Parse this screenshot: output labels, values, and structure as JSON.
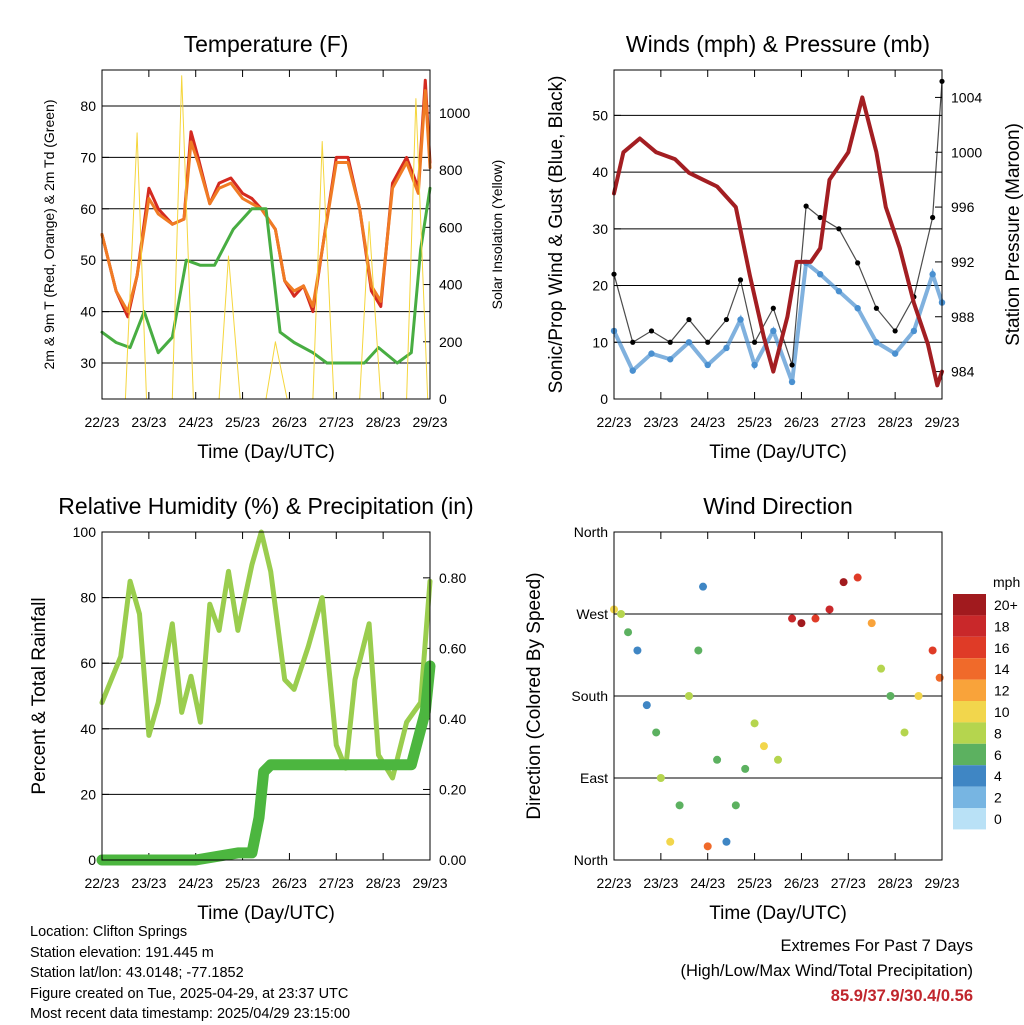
{
  "chart_data": [
    {
      "type": "line",
      "title": "Temperature (F)",
      "xlabel": "Time (Day/UTC)",
      "ylabel": "2m & 9m T (Red, Orange) & 2m Td (Green)",
      "y2label": "Solar Insolation (Yellow)",
      "x_ticks": [
        "22/23",
        "23/23",
        "24/23",
        "25/23",
        "26/23",
        "27/23",
        "28/23",
        "29/23"
      ],
      "y_ticks": [
        30,
        40,
        50,
        60,
        70,
        80
      ],
      "y2_ticks": [
        0,
        200,
        400,
        600,
        800,
        1000
      ],
      "ylim": [
        23,
        87
      ],
      "y2lim": [
        0,
        1150
      ],
      "grid": true,
      "series": [
        {
          "name": "2m T",
          "color": "#d42a20",
          "x": [
            0.0,
            0.3,
            0.55,
            0.75,
            1.0,
            1.2,
            1.5,
            1.75,
            1.9,
            2.05,
            2.3,
            2.5,
            2.75,
            3.0,
            3.2,
            3.4,
            3.7,
            3.9,
            4.1,
            4.3,
            4.5,
            4.7,
            5.0,
            5.25,
            5.5,
            5.75,
            5.95,
            6.2,
            6.5,
            6.75,
            6.9,
            7.0
          ],
          "values": [
            55,
            44,
            39,
            47,
            64,
            60,
            57,
            58,
            75,
            70,
            61,
            65,
            66,
            63,
            62,
            60,
            56,
            46,
            43,
            45,
            40,
            52,
            70,
            70,
            60,
            44,
            41,
            65,
            70,
            64,
            85,
            69
          ]
        },
        {
          "name": "9m T",
          "color": "#f07b24",
          "x": [
            0.0,
            0.3,
            0.55,
            0.75,
            1.0,
            1.2,
            1.5,
            1.75,
            1.9,
            2.05,
            2.3,
            2.5,
            2.75,
            3.0,
            3.2,
            3.4,
            3.7,
            3.9,
            4.1,
            4.3,
            4.5,
            4.7,
            5.0,
            5.25,
            5.5,
            5.75,
            5.95,
            6.2,
            6.5,
            6.75,
            6.9,
            7.0
          ],
          "values": [
            55,
            44,
            40,
            47,
            62,
            59,
            57,
            58,
            73,
            69,
            61,
            64,
            65,
            62,
            61,
            60,
            56,
            46,
            44,
            45,
            41,
            52,
            69,
            69,
            60,
            45,
            42,
            64,
            69,
            63,
            83,
            68
          ]
        },
        {
          "name": "2m Td",
          "color": "#48ad42",
          "x": [
            0.0,
            0.3,
            0.6,
            0.9,
            1.2,
            1.5,
            1.8,
            2.1,
            2.4,
            2.8,
            3.2,
            3.5,
            3.8,
            4.1,
            4.5,
            4.8,
            5.2,
            5.6,
            5.9,
            6.3,
            6.6,
            6.8,
            7.0
          ],
          "values": [
            36,
            34,
            33,
            40,
            32,
            35,
            50,
            49,
            49,
            56,
            60,
            60,
            36,
            34,
            32,
            30,
            30,
            30,
            33,
            30,
            32,
            52,
            64
          ]
        },
        {
          "name": "Solar Insolation",
          "color": "#f5d63d",
          "axis": "y2",
          "x": [
            0.5,
            0.75,
            0.95,
            1.5,
            1.7,
            1.95,
            2.5,
            2.7,
            2.95,
            3.5,
            3.7,
            3.95,
            4.5,
            4.7,
            4.95,
            5.5,
            5.7,
            5.95,
            6.5,
            6.7,
            6.95
          ],
          "values": [
            0,
            930,
            0,
            0,
            1130,
            0,
            0,
            500,
            0,
            0,
            200,
            0,
            0,
            900,
            0,
            0,
            620,
            0,
            0,
            1050,
            0
          ]
        }
      ]
    },
    {
      "type": "scatter",
      "title": "Winds (mph) & Pressure (mb)",
      "xlabel": "Time (Day/UTC)",
      "ylabel": "Sonic/Prop Wind & Gust (Blue, Black)",
      "y2label": "Station Pressure (Maroon)",
      "x_ticks": [
        "22/23",
        "23/23",
        "24/23",
        "25/23",
        "26/23",
        "27/23",
        "28/23",
        "29/23"
      ],
      "y_ticks": [
        0,
        10,
        20,
        30,
        40,
        50
      ],
      "y2_ticks": [
        984,
        988,
        992,
        996,
        1000,
        1004
      ],
      "ylim": [
        0,
        58
      ],
      "y2lim": [
        982,
        1006
      ],
      "grid": true,
      "series": [
        {
          "name": "Sonic/Prop Wind",
          "color": "#4a90d0",
          "x": [
            0.0,
            0.4,
            0.8,
            1.2,
            1.6,
            2.0,
            2.4,
            2.7,
            3.0,
            3.4,
            3.8,
            4.1,
            4.4,
            4.8,
            5.2,
            5.6,
            6.0,
            6.4,
            6.8,
            7.0
          ],
          "values": [
            12,
            5,
            8,
            7,
            10,
            6,
            9,
            14,
            6,
            12,
            3,
            24,
            22,
            19,
            16,
            10,
            8,
            12,
            22,
            17
          ]
        },
        {
          "name": "Gust",
          "color": "#000000",
          "x": [
            0.0,
            0.4,
            0.8,
            1.2,
            1.6,
            2.0,
            2.4,
            2.7,
            3.0,
            3.4,
            3.8,
            4.1,
            4.4,
            4.8,
            5.2,
            5.6,
            6.0,
            6.4,
            6.8,
            7.0
          ],
          "values": [
            22,
            10,
            12,
            10,
            14,
            10,
            14,
            21,
            10,
            16,
            6,
            34,
            32,
            30,
            24,
            16,
            12,
            18,
            32,
            56
          ]
        },
        {
          "name": "Station Pressure",
          "color": "#a31e22",
          "axis": "y2",
          "x": [
            0.0,
            0.2,
            0.55,
            0.9,
            1.3,
            1.6,
            1.9,
            2.2,
            2.6,
            2.9,
            3.2,
            3.4,
            3.7,
            3.9,
            4.2,
            4.4,
            4.6,
            5.0,
            5.3,
            5.6,
            5.8,
            6.1,
            6.4,
            6.7,
            6.9,
            7.0
          ],
          "values": [
            997,
            1000,
            1001,
            1000,
            999.5,
            998.5,
            998,
            997.5,
            996,
            991,
            986.5,
            984,
            988,
            992,
            992,
            993,
            998,
            1000,
            1004,
            1000,
            996,
            993,
            989,
            986,
            983,
            984
          ]
        }
      ]
    },
    {
      "type": "line",
      "title": "Relative Humidity (%) & Precipitation (in)",
      "xlabel": "Time (Day/UTC)",
      "ylabel": "Percent & Total Rainfall",
      "x_ticks": [
        "22/23",
        "23/23",
        "24/23",
        "25/23",
        "26/23",
        "27/23",
        "28/23",
        "29/23"
      ],
      "y_ticks": [
        0,
        20,
        40,
        60,
        80,
        100
      ],
      "y2_ticks": [
        "0.00",
        "0.20",
        "0.40",
        "0.60",
        "0.80"
      ],
      "ylim": [
        0,
        100
      ],
      "y2lim": [
        0,
        0.93
      ],
      "grid": true,
      "series": [
        {
          "name": "Relative Humidity",
          "color": "#9acd4e",
          "x": [
            0.0,
            0.4,
            0.6,
            0.8,
            1.0,
            1.2,
            1.5,
            1.7,
            1.9,
            2.1,
            2.3,
            2.5,
            2.7,
            2.9,
            3.2,
            3.4,
            3.6,
            3.9,
            4.1,
            4.4,
            4.7,
            5.0,
            5.2,
            5.4,
            5.7,
            5.9,
            6.2,
            6.5,
            6.8,
            7.0
          ],
          "values": [
            48,
            62,
            85,
            75,
            38,
            48,
            72,
            45,
            56,
            42,
            78,
            70,
            88,
            70,
            90,
            100,
            88,
            55,
            52,
            65,
            80,
            35,
            28,
            55,
            72,
            32,
            25,
            42,
            48,
            85
          ]
        },
        {
          "name": "Total Rainfall",
          "color": "#4cb63f",
          "axis": "y2",
          "x": [
            0.0,
            2.0,
            2.9,
            3.2,
            3.35,
            3.45,
            3.6,
            4.0,
            6.6,
            6.9,
            7.0
          ],
          "values": [
            0.0,
            0.0,
            0.02,
            0.02,
            0.12,
            0.25,
            0.27,
            0.27,
            0.27,
            0.42,
            0.55
          ]
        }
      ]
    },
    {
      "type": "scatter",
      "title": "Wind Direction",
      "xlabel": "Time (Day/UTC)",
      "ylabel": "Direction (Colored By Speed)",
      "x_ticks": [
        "22/23",
        "23/23",
        "24/23",
        "25/23",
        "26/23",
        "27/23",
        "28/23",
        "29/23"
      ],
      "y_ticks": [
        "North",
        "East",
        "South",
        "West",
        "North"
      ],
      "ylim": [
        0,
        360
      ],
      "grid": true,
      "legend_title": "mph",
      "legend": [
        "20+",
        "18",
        "16",
        "14",
        "12",
        "10",
        "8",
        "6",
        "4",
        "2",
        "0"
      ],
      "legend_colors": [
        "#a11a1e",
        "#c9282a",
        "#df3b27",
        "#f06a2a",
        "#f9a33a",
        "#f2d64c",
        "#b5d54e",
        "#5cb160",
        "#3f86c4",
        "#77b5e2",
        "#b9e1f6"
      ],
      "series": [
        {
          "name": "Direction",
          "x": [
            0.0,
            0.15,
            0.3,
            0.5,
            0.7,
            0.9,
            1.0,
            1.2,
            1.4,
            1.6,
            1.8,
            1.9,
            2.0,
            2.2,
            2.4,
            2.6,
            2.8,
            3.0,
            3.2,
            3.5,
            3.8,
            4.0,
            4.3,
            4.6,
            4.9,
            5.2,
            5.5,
            5.7,
            5.9,
            6.2,
            6.5,
            6.8,
            6.95
          ],
          "values": [
            275,
            270,
            250,
            230,
            170,
            140,
            90,
            20,
            60,
            180,
            230,
            300,
            15,
            110,
            20,
            60,
            100,
            150,
            125,
            110,
            265,
            260,
            265,
            275,
            305,
            310,
            260,
            210,
            180,
            140,
            180,
            230,
            200
          ],
          "speeds": [
            10,
            8,
            6,
            4,
            4,
            6,
            8,
            10,
            6,
            8,
            6,
            4,
            14,
            6,
            4,
            6,
            6,
            8,
            10,
            8,
            18,
            20,
            16,
            18,
            20,
            16,
            12,
            8,
            6,
            8,
            10,
            16,
            14
          ]
        }
      ]
    }
  ],
  "info": {
    "location": "Location: Clifton Springs",
    "elevation": "Station elevation: 191.445 m",
    "latlon": "Station lat/lon: 43.0148; -77.1852",
    "created": "Figure created on Tue, 2025-04-29, at 23:37 UTC",
    "recent": "Most recent data timestamp: 2025/04/29 23:15:00"
  },
  "extremes": {
    "line1": "Extremes For Past 7 Days",
    "line2": "(High/Low/Max Wind/Total Precipitation)",
    "values": "85.9/37.9/30.4/0.56"
  }
}
